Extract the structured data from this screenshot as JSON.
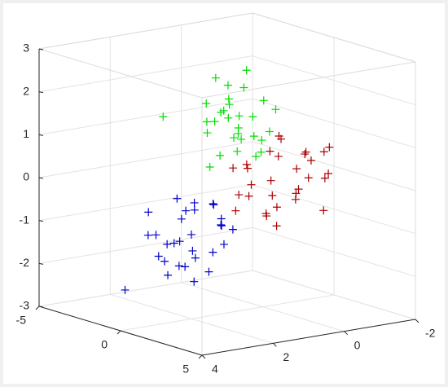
{
  "chart_data": {
    "type": "scatter3d",
    "xlim": [
      -5,
      5
    ],
    "xticks": [
      -5,
      0,
      5
    ],
    "ylim": [
      -2,
      4
    ],
    "yticks": [
      -2,
      0,
      2,
      4
    ],
    "zlim": [
      -3,
      3
    ],
    "zticks": [
      -3,
      -2,
      -1,
      0,
      1,
      2,
      3
    ],
    "grid": true,
    "series": [
      {
        "color": "#0000cc",
        "x": [
          0.2,
          -0.8,
          1.1,
          -1.5,
          0.5,
          -0.3,
          1.6,
          0.9,
          -1.1,
          0.0,
          1.3,
          -0.5,
          0.7,
          -2.0,
          0.4,
          1.8,
          -0.9,
          0.1,
          1.0,
          -1.3,
          0.6,
          -0.2,
          2.2,
          -0.7,
          0.3,
          1.4,
          -1.8,
          0.8,
          -0.4,
          -3.0
        ],
        "y": [
          2.1,
          1.8,
          2.4,
          1.6,
          2.9,
          2.2,
          1.9,
          2.6,
          2.5,
          1.4,
          2.0,
          2.7,
          1.5,
          2.3,
          1.7,
          2.8,
          2.0,
          2.4,
          1.3,
          1.9,
          2.2,
          2.6,
          2.1,
          1.6,
          2.9,
          1.8,
          2.4,
          2.3,
          1.2,
          2.5
        ],
        "z": [
          -1.0,
          -0.6,
          -1.4,
          -0.9,
          -1.8,
          -1.2,
          -0.5,
          -1.6,
          -1.1,
          -0.4,
          -1.3,
          -1.5,
          -0.8,
          -0.7,
          -1.9,
          -1.1,
          -0.3,
          -1.7,
          -0.9,
          -1.4,
          -0.2,
          -1.2,
          -1.0,
          -0.6,
          -1.5,
          -0.7,
          -1.2,
          -2.0,
          -0.5,
          -2.6
        ]
      },
      {
        "color": "#00dd00",
        "x": [
          -1.5,
          -0.8,
          -2.2,
          -1.0,
          -1.9,
          -0.5,
          -2.6,
          -1.2,
          -1.7,
          -0.2,
          -2.0,
          -1.4,
          -0.9,
          -2.4,
          -1.1,
          -0.6,
          -1.8,
          -3.0,
          -1.3,
          -0.4,
          -2.1,
          -1.6,
          -0.7,
          -2.8,
          -1.0,
          -1.5,
          -0.3,
          -2.3,
          -1.2,
          -3.5
        ],
        "y": [
          0.0,
          0.3,
          -0.4,
          0.5,
          0.1,
          -0.2,
          0.4,
          -0.5,
          0.2,
          0.6,
          -0.1,
          0.3,
          -0.6,
          0.0,
          0.7,
          -0.3,
          0.5,
          0.2,
          -0.4,
          0.1,
          0.6,
          -0.2,
          0.4,
          -0.1,
          0.0,
          0.8,
          -0.5,
          0.3,
          -0.3,
          1.2
        ],
        "z": [
          1.0,
          1.4,
          0.6,
          1.8,
          1.2,
          0.8,
          1.5,
          0.4,
          2.0,
          1.1,
          0.7,
          1.6,
          0.9,
          1.3,
          0.5,
          1.7,
          2.2,
          1.0,
          0.3,
          1.4,
          0.9,
          1.9,
          0.6,
          1.2,
          2.4,
          0.2,
          1.5,
          1.1,
          0.8,
          1.2
        ]
      },
      {
        "color": "#aa0000",
        "x": [
          0.5,
          1.2,
          -0.2,
          0.9,
          1.6,
          0.1,
          0.7,
          1.9,
          -0.5,
          1.1,
          0.3,
          1.4,
          0.8,
          -0.1,
          2.2,
          0.6,
          1.0,
          0.2,
          1.7,
          -0.3,
          0.4,
          1.3,
          0.9,
          2.5,
          0.0,
          1.5,
          0.7,
          1.1,
          -0.6,
          0.3
        ],
        "y": [
          0.0,
          -0.4,
          0.3,
          -0.8,
          -0.2,
          0.5,
          -0.6,
          -1.0,
          0.2,
          0.4,
          -0.3,
          -1.2,
          0.1,
          -0.5,
          -0.7,
          0.6,
          -0.9,
          0.0,
          -0.4,
          0.7,
          -1.1,
          0.2,
          -0.1,
          -0.6,
          -0.2,
          0.3,
          -1.4,
          -0.5,
          0.4,
          0.9
        ],
        "z": [
          0.0,
          0.3,
          -0.4,
          0.6,
          -0.2,
          0.4,
          -0.5,
          0.8,
          0.2,
          -0.7,
          0.5,
          0.1,
          -0.3,
          0.9,
          -0.6,
          0.0,
          0.4,
          -0.8,
          0.7,
          0.3,
          -0.1,
          -0.5,
          1.0,
          0.2,
          0.6,
          -0.9,
          0.5,
          -0.2,
          -0.4,
          -0.6
        ]
      }
    ]
  }
}
